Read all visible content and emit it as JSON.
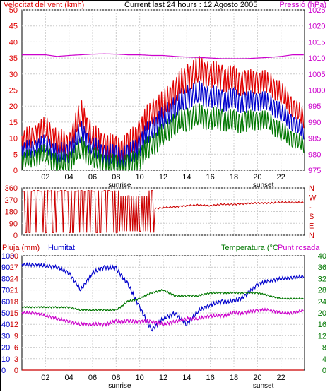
{
  "colors": {
    "wind_red": "#e00000",
    "wind_blue": "#0000cc",
    "wind_green": "#007700",
    "pressure": "#cc00cc",
    "direction": "#cc0000",
    "humidity": "#0000cc",
    "temperature": "#007700",
    "dewpoint": "#cc00cc",
    "rain": "#cc0000",
    "grid": "#cccccc",
    "day_bg": "#ffffff",
    "night_bg": "#ffffff"
  },
  "chart_data": [
    {
      "type": "line",
      "title": "Current last 24 hours : 12 Agosto 2005",
      "ylabel": "Velocitat del vent (kmh)",
      "y2label": "Pressió (hPa)",
      "x_ticks": [
        "02",
        "04",
        "06",
        "08",
        "10",
        "12",
        "14",
        "16",
        "18",
        "20",
        "22"
      ],
      "x_annotations": [
        "sunrise",
        "sunset"
      ],
      "ylim": [
        0,
        50
      ],
      "y_ticks": [
        0,
        5,
        10,
        15,
        20,
        25,
        30,
        35,
        40,
        45,
        50
      ],
      "y2lim": [
        975,
        1025
      ],
      "y2_ticks": [
        975,
        980,
        985,
        990,
        995,
        1000,
        1005,
        1010,
        1015,
        1020,
        1025
      ],
      "x": [
        0,
        1,
        2,
        3,
        4,
        5,
        6,
        7,
        8,
        9,
        10,
        11,
        12,
        13,
        14,
        15,
        16,
        17,
        18,
        19,
        20,
        21,
        22,
        23,
        24
      ],
      "series": [
        {
          "key": "gust",
          "values": [
            9,
            11,
            13,
            9,
            8,
            18,
            10,
            8,
            6,
            7,
            12,
            18,
            20,
            25,
            29,
            31,
            30,
            29,
            28,
            27,
            28,
            27,
            24,
            20,
            16
          ]
        },
        {
          "key": "avg",
          "values": [
            6,
            7,
            8,
            5,
            6,
            12,
            7,
            5,
            4,
            4,
            8,
            13,
            16,
            20,
            23,
            24,
            23,
            22,
            22,
            21,
            22,
            21,
            18,
            15,
            12
          ]
        },
        {
          "key": "min",
          "values": [
            3,
            4,
            5,
            2,
            3,
            7,
            4,
            2,
            1,
            1,
            4,
            8,
            11,
            15,
            16,
            17,
            16,
            16,
            15,
            15,
            16,
            15,
            12,
            10,
            8
          ]
        },
        {
          "key": "pressure",
          "values": [
            1011,
            1011,
            1011,
            1010.5,
            1010.8,
            1011,
            1011.2,
            1011.3,
            1011.2,
            1011,
            1011,
            1010.8,
            1010.8,
            1010.5,
            1010.3,
            1010.2,
            1010,
            1009.8,
            1009.8,
            1009.8,
            1010,
            1010.2,
            1010.5,
            1011,
            1011
          ]
        }
      ]
    },
    {
      "type": "line",
      "title": "",
      "ylabel": "",
      "ylim": [
        0,
        360
      ],
      "y_ticks": [
        0,
        90,
        180,
        270,
        360
      ],
      "y_tick_labels": [
        "0",
        "90",
        "180",
        "270",
        "360"
      ],
      "y2_ticks": [
        "N",
        "E",
        "S",
        "-",
        "W",
        "N"
      ],
      "x": [
        0,
        1,
        2,
        3,
        4,
        5,
        6,
        7,
        8,
        9,
        10,
        11,
        12,
        13,
        14,
        15,
        16,
        17,
        18,
        19,
        20,
        21,
        22,
        23,
        24
      ],
      "series": [
        {
          "key": "direction",
          "values": [
            330,
            20,
            340,
            15,
            340,
            10,
            345,
            330,
            20,
            330,
            15,
            200,
            210,
            215,
            225,
            230,
            225,
            235,
            235,
            240,
            245,
            245,
            250,
            250,
            250
          ]
        }
      ]
    },
    {
      "type": "line",
      "title": "",
      "left_labels": [
        "Pluja (mm)",
        "Humitat"
      ],
      "right_labels": [
        "Temperatura (°C",
        "Punt rosada"
      ],
      "y_ticks_rain": [
        "0",
        "3",
        "6",
        "9",
        "12",
        "15",
        "18",
        "21",
        "24",
        "27",
        "30"
      ],
      "y_ticks_humidity": [
        "0",
        "10",
        "20",
        "30",
        "40",
        "50",
        "60",
        "70",
        "80",
        "90",
        "100"
      ],
      "y_ticks_temp": [
        "0",
        "4",
        "8",
        "12",
        "16",
        "20",
        "24",
        "28",
        "32",
        "36",
        "40"
      ],
      "x_ticks": [
        "02",
        "04",
        "06",
        "08",
        "10",
        "12",
        "14",
        "16",
        "18",
        "20",
        "22"
      ],
      "x_annotations": [
        "sunrise",
        "sunset"
      ],
      "humidity_lim": [
        0,
        100
      ],
      "temp_lim": [
        0,
        40
      ],
      "x": [
        0,
        1,
        2,
        3,
        4,
        5,
        6,
        7,
        8,
        9,
        10,
        11,
        12,
        13,
        14,
        15,
        16,
        17,
        18,
        19,
        20,
        21,
        22,
        23,
        24
      ],
      "series": [
        {
          "key": "humidity",
          "values": [
            92,
            92,
            91,
            90,
            85,
            70,
            85,
            90,
            89,
            75,
            55,
            35,
            45,
            50,
            40,
            52,
            57,
            60,
            60,
            65,
            75,
            78,
            80,
            81,
            82
          ]
        },
        {
          "key": "temperature",
          "values": [
            22,
            22,
            22,
            22,
            22,
            21,
            21,
            21,
            21,
            24,
            25,
            27,
            28,
            26,
            26,
            26,
            27,
            27,
            27,
            27,
            27,
            26,
            25,
            25,
            25
          ]
        },
        {
          "key": "dewpoint",
          "values": [
            20,
            20,
            19,
            18,
            17,
            16,
            16,
            16,
            17,
            17,
            17,
            17,
            16,
            17,
            18,
            18,
            19,
            19,
            20,
            20,
            21,
            21,
            20,
            20,
            21
          ]
        },
        {
          "key": "rain",
          "values": [
            0,
            0,
            0,
            0,
            0,
            0,
            0,
            0,
            0,
            0,
            0,
            0,
            0,
            0,
            0,
            0,
            0,
            0,
            0,
            0,
            0,
            0,
            0,
            0,
            0
          ]
        }
      ]
    }
  ]
}
